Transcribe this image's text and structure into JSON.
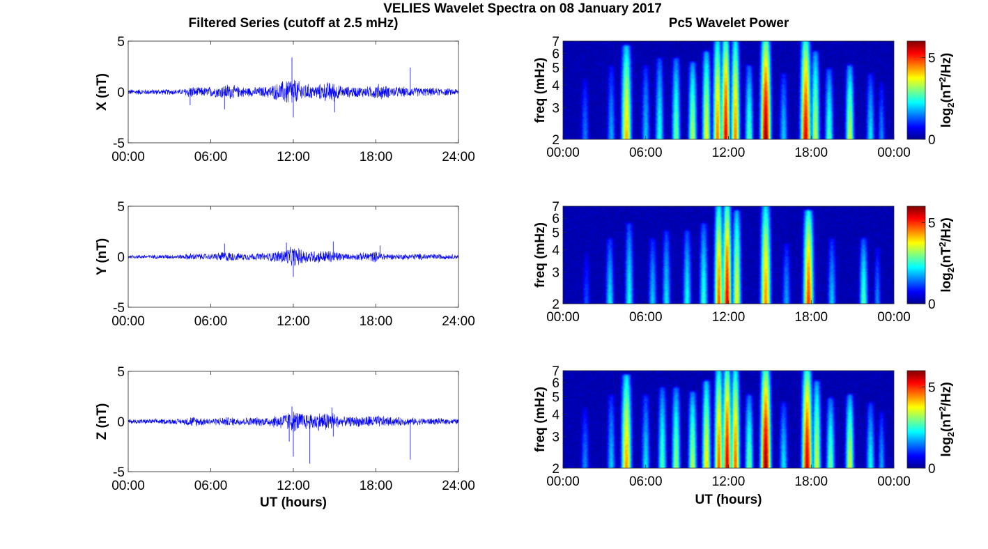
{
  "figure": {
    "title": "VELIES Wavelet Spectra on 08 January 2017",
    "left_title": "Filtered Series (cutoff at 2.5 mHz)",
    "right_title": "Pc5 Wavelet Power"
  },
  "chart_data": [
    {
      "type": "line",
      "title": "Filtered Series (cutoff at 2.5 mHz)",
      "xlabel": "",
      "ylabel": "X (nT)",
      "xlim": [
        0,
        24
      ],
      "ylim": [
        -5,
        5
      ],
      "xticks": [
        "00:00",
        "06:00",
        "12:00",
        "18:00",
        "24:00"
      ],
      "yticks": [
        "-5",
        "0",
        "5"
      ],
      "color": "#0000ff",
      "series": [
        {
          "baseline": 0,
          "envelope": [
            [
              0,
              0.3
            ],
            [
              4,
              0.3
            ],
            [
              4.5,
              0.7
            ],
            [
              5,
              0.5
            ],
            [
              6.5,
              0.6
            ],
            [
              7.2,
              0.9
            ],
            [
              8,
              0.6
            ],
            [
              9,
              0.5
            ],
            [
              10,
              0.6
            ],
            [
              11,
              1.0
            ],
            [
              11.8,
              1.7
            ],
            [
              12.5,
              1.1
            ],
            [
              13.5,
              0.7
            ],
            [
              14.8,
              1.2
            ],
            [
              15.5,
              0.6
            ],
            [
              17.5,
              0.6
            ],
            [
              18.2,
              0.9
            ],
            [
              19,
              0.6
            ],
            [
              21,
              0.5
            ],
            [
              24,
              0.35
            ]
          ],
          "spikes": [
            [
              4.5,
              -1.3
            ],
            [
              7,
              -1.7
            ],
            [
              11.9,
              3.4
            ],
            [
              12,
              -2.5
            ],
            [
              15,
              -2
            ],
            [
              20.5,
              2.4
            ]
          ]
        }
      ]
    },
    {
      "type": "line",
      "title": "",
      "xlabel": "",
      "ylabel": "Y (nT)",
      "xlim": [
        0,
        24
      ],
      "ylim": [
        -5,
        5
      ],
      "xticks": [
        "00:00",
        "06:00",
        "12:00",
        "18:00",
        "24:00"
      ],
      "yticks": [
        "-5",
        "0",
        "5"
      ],
      "color": "#0000ff",
      "series": [
        {
          "baseline": 0,
          "envelope": [
            [
              0,
              0.2
            ],
            [
              4,
              0.25
            ],
            [
              4.5,
              0.4
            ],
            [
              6,
              0.3
            ],
            [
              7,
              0.6
            ],
            [
              8,
              0.4
            ],
            [
              10,
              0.4
            ],
            [
              11,
              0.7
            ],
            [
              12,
              1.1
            ],
            [
              13,
              0.7
            ],
            [
              14.8,
              0.7
            ],
            [
              16,
              0.3
            ],
            [
              18,
              0.6
            ],
            [
              19,
              0.3
            ],
            [
              21,
              0.35
            ],
            [
              24,
              0.25
            ]
          ],
          "spikes": [
            [
              7,
              1.3
            ],
            [
              12,
              -2
            ],
            [
              14.9,
              1.5
            ],
            [
              18.3,
              1.1
            ],
            [
              11.5,
              1.4
            ]
          ]
        }
      ]
    },
    {
      "type": "line",
      "title": "",
      "xlabel": "UT (hours)",
      "ylabel": "Z (nT)",
      "xlim": [
        0,
        24
      ],
      "ylim": [
        -5,
        5
      ],
      "xticks": [
        "00:00",
        "06:00",
        "12:00",
        "18:00",
        "24:00"
      ],
      "yticks": [
        "-5",
        "0",
        "5"
      ],
      "color": "#0000ff",
      "series": [
        {
          "baseline": 0,
          "envelope": [
            [
              0,
              0.25
            ],
            [
              4,
              0.3
            ],
            [
              4.5,
              0.6
            ],
            [
              6,
              0.35
            ],
            [
              7,
              0.5
            ],
            [
              8,
              0.45
            ],
            [
              10,
              0.5
            ],
            [
              11,
              0.8
            ],
            [
              12,
              1.2
            ],
            [
              13,
              0.9
            ],
            [
              14.8,
              1.1
            ],
            [
              15.5,
              0.5
            ],
            [
              18,
              0.7
            ],
            [
              19,
              0.5
            ],
            [
              21,
              0.4
            ],
            [
              24,
              0.3
            ]
          ],
          "spikes": [
            [
              11.9,
              1.5
            ],
            [
              12,
              -3.5
            ],
            [
              13.2,
              -4.2
            ],
            [
              14.9,
              -1.5
            ],
            [
              14.8,
              1.4
            ],
            [
              20.5,
              -3.8
            ],
            [
              11.7,
              -2
            ]
          ]
        }
      ]
    },
    {
      "type": "heatmap",
      "title": "Pc5 Wavelet Power",
      "xlabel": "",
      "ylabel": "freq (mHz)",
      "xlim": [
        0,
        24
      ],
      "ylim": [
        2,
        7
      ],
      "yscale": "log",
      "xticks": [
        "00:00",
        "06:00",
        "12:00",
        "18:00",
        "00:00"
      ],
      "yticks": [
        "2",
        "3",
        "4",
        "5",
        "6",
        "7"
      ],
      "colorbar": {
        "label": "log2(nT2/Hz)",
        "range": [
          0,
          6
        ],
        "ticks": [
          "0",
          "5"
        ],
        "colormap": "jet"
      },
      "blobs": [
        [
          1.6,
          0.3,
          4.2,
          1.5
        ],
        [
          3.5,
          0.3,
          5,
          1.8
        ],
        [
          4.6,
          0.35,
          6.5,
          4.2
        ],
        [
          6,
          0.3,
          5,
          2
        ],
        [
          7,
          0.3,
          5.5,
          2.5
        ],
        [
          8.2,
          0.3,
          5.5,
          3
        ],
        [
          9.4,
          0.3,
          5.2,
          3.4
        ],
        [
          10.4,
          0.3,
          6,
          3.8
        ],
        [
          11.2,
          0.3,
          7,
          4.6
        ],
        [
          11.8,
          0.3,
          7,
          5.5
        ],
        [
          12.5,
          0.3,
          7,
          4.6
        ],
        [
          13.5,
          0.3,
          5,
          2.8
        ],
        [
          14.7,
          0.35,
          7,
          6
        ],
        [
          16,
          0.3,
          4.5,
          2
        ],
        [
          17.6,
          0.35,
          7,
          5.5
        ],
        [
          18.3,
          0.3,
          6,
          3.5
        ],
        [
          19.3,
          0.3,
          4.8,
          2.8
        ],
        [
          20.8,
          0.3,
          5,
          3.5
        ],
        [
          22.3,
          0.3,
          4.5,
          2.2
        ],
        [
          23.1,
          0.25,
          4,
          1.6
        ]
      ]
    },
    {
      "type": "heatmap",
      "title": "",
      "xlabel": "",
      "ylabel": "freq (mHz)",
      "xlim": [
        0,
        24
      ],
      "ylim": [
        2,
        7
      ],
      "yscale": "log",
      "xticks": [
        "00:00",
        "06:00",
        "12:00",
        "18:00",
        "00:00"
      ],
      "yticks": [
        "2",
        "3",
        "4",
        "5",
        "6",
        "7"
      ],
      "colorbar": {
        "label": "log2(nT2/Hz)",
        "range": [
          0,
          6
        ],
        "ticks": [
          "0",
          "5"
        ],
        "colormap": "jet"
      },
      "blobs": [
        [
          1.7,
          0.3,
          3.8,
          1.2
        ],
        [
          3.4,
          0.3,
          4.5,
          2.2
        ],
        [
          4.8,
          0.3,
          5.5,
          2.4
        ],
        [
          6.5,
          0.3,
          4.5,
          2
        ],
        [
          7.5,
          0.3,
          5,
          2.2
        ],
        [
          9,
          0.3,
          5,
          2.4
        ],
        [
          10.2,
          0.3,
          5.5,
          2.6
        ],
        [
          11.3,
          0.3,
          7,
          4.8
        ],
        [
          11.9,
          0.3,
          7,
          5.5
        ],
        [
          12.6,
          0.3,
          6.5,
          3.8
        ],
        [
          14.7,
          0.35,
          7,
          4.5
        ],
        [
          16.2,
          0.3,
          4.2,
          1.8
        ],
        [
          17.8,
          0.35,
          6.5,
          5
        ],
        [
          19.5,
          0.3,
          4.5,
          2
        ],
        [
          21.8,
          0.3,
          4.5,
          2.8
        ],
        [
          22.8,
          0.25,
          4,
          1.6
        ]
      ]
    },
    {
      "type": "heatmap",
      "title": "",
      "xlabel": "UT (hours)",
      "ylabel": "freq (mHz)",
      "xlim": [
        0,
        24
      ],
      "ylim": [
        2,
        7
      ],
      "yscale": "log",
      "xticks": [
        "00:00",
        "06:00",
        "12:00",
        "18:00",
        "00:00"
      ],
      "yticks": [
        "2",
        "3",
        "4",
        "5",
        "6",
        "7"
      ],
      "colorbar": {
        "label": "log2(nT2/Hz)",
        "range": [
          0,
          6
        ],
        "ticks": [
          "0",
          "5"
        ],
        "colormap": "jet"
      },
      "blobs": [
        [
          1.6,
          0.3,
          4.2,
          1.6
        ],
        [
          3.5,
          0.3,
          5,
          2
        ],
        [
          4.6,
          0.35,
          6.5,
          4.4
        ],
        [
          6,
          0.3,
          5,
          2.2
        ],
        [
          7.2,
          0.3,
          5.5,
          2.8
        ],
        [
          8.2,
          0.3,
          5.5,
          3.2
        ],
        [
          9.4,
          0.3,
          5.2,
          3.4
        ],
        [
          10.4,
          0.3,
          6,
          4
        ],
        [
          11.3,
          0.3,
          7,
          4.8
        ],
        [
          11.9,
          0.3,
          7,
          5.6
        ],
        [
          12.5,
          0.3,
          7,
          4.8
        ],
        [
          13.5,
          0.3,
          5,
          3
        ],
        [
          14.7,
          0.35,
          7,
          6
        ],
        [
          16,
          0.3,
          4.5,
          2.2
        ],
        [
          17.7,
          0.35,
          7,
          5.6
        ],
        [
          18.4,
          0.3,
          6,
          3.6
        ],
        [
          19.4,
          0.3,
          4.8,
          3
        ],
        [
          20.8,
          0.3,
          5,
          3.6
        ],
        [
          22.3,
          0.3,
          4.5,
          2.4
        ],
        [
          23.1,
          0.25,
          4,
          1.8
        ]
      ]
    }
  ]
}
